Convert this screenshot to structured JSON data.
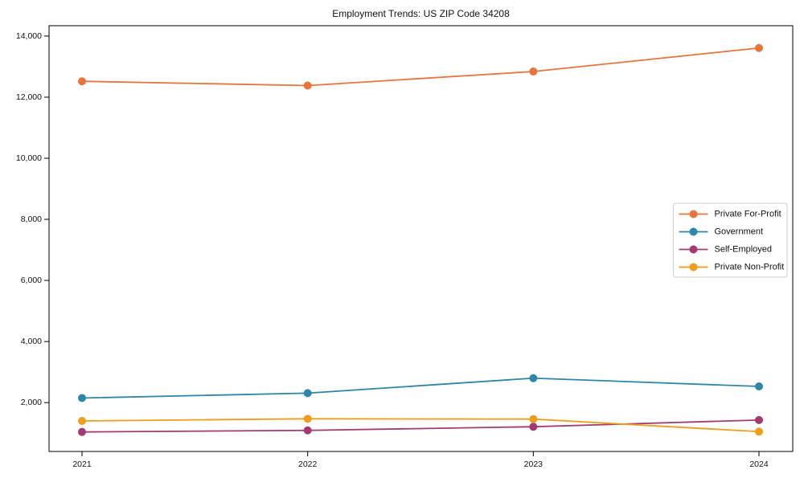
{
  "chart_data": {
    "type": "line",
    "title": "Employment Trends: US ZIP Code 34208",
    "xlabel": "",
    "ylabel": "",
    "categories": [
      "2021",
      "2022",
      "2023",
      "2024"
    ],
    "series": [
      {
        "name": "Private For-Profit",
        "color": "#E8743B",
        "values": [
          12520,
          12380,
          12840,
          13610
        ]
      },
      {
        "name": "Government",
        "color": "#2E86A8",
        "values": [
          2150,
          2310,
          2800,
          2530
        ]
      },
      {
        "name": "Self-Employed",
        "color": "#A23B72",
        "values": [
          1040,
          1090,
          1210,
          1430
        ]
      },
      {
        "name": "Private Non-Profit",
        "color": "#EE9E1C",
        "values": [
          1400,
          1470,
          1460,
          1050
        ]
      }
    ],
    "yticks": [
      2000,
      4000,
      6000,
      8000,
      10000,
      12000,
      14000
    ],
    "yticklabels": [
      "2,000",
      "4,000",
      "6,000",
      "8,000",
      "10,000",
      "12,000",
      "14,000"
    ],
    "ylim": [
      400,
      14340
    ],
    "grid": false,
    "legend_position": "center-right",
    "marker": "circle",
    "axis_color": "#000000",
    "legend_border_color": "#cccccc"
  }
}
